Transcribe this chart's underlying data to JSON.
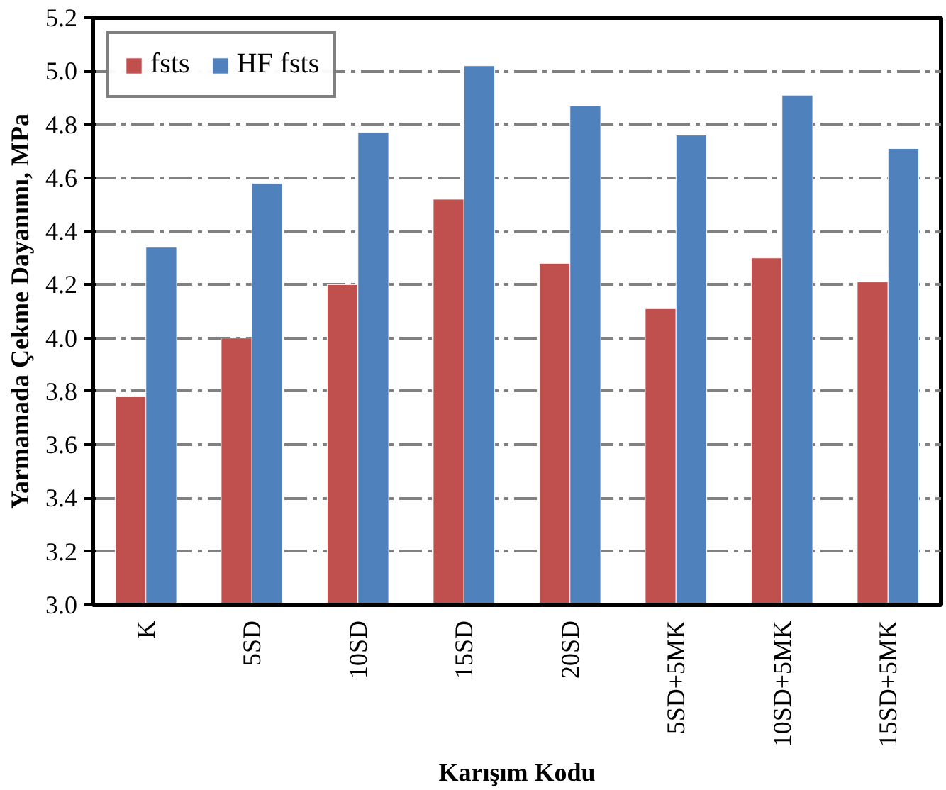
{
  "chart_data": {
    "type": "bar",
    "xlabel": "Karışım Kodu",
    "ylabel": "Yarmamada Çekme Dayanımı, MPa",
    "categories": [
      "K",
      "5SD",
      "10SD",
      "15SD",
      "20SD",
      "5SD+5MK",
      "10SD+5MK",
      "15SD+5MK"
    ],
    "series": [
      {
        "name": "fsts",
        "color": "#c0504d",
        "values": [
          3.78,
          4.0,
          4.2,
          4.52,
          4.28,
          4.11,
          4.3,
          4.21
        ]
      },
      {
        "name": "HF fsts",
        "color": "#4f81bd",
        "values": [
          4.34,
          4.58,
          4.77,
          5.02,
          4.87,
          4.76,
          4.91,
          4.71
        ]
      }
    ],
    "ylim": [
      3.0,
      5.2
    ],
    "yticks": [
      {
        "value": 3.0,
        "label": "3.0"
      },
      {
        "value": 3.2,
        "label": "3.2"
      },
      {
        "value": 3.4,
        "label": "3.4"
      },
      {
        "value": 3.6,
        "label": "3.6"
      },
      {
        "value": 3.8,
        "label": "3.8"
      },
      {
        "value": 4.0,
        "label": "4.0"
      },
      {
        "value": 4.2,
        "label": "4.2"
      },
      {
        "value": 4.4,
        "label": "4.4"
      },
      {
        "value": 4.6,
        "label": "4.6"
      },
      {
        "value": 4.8,
        "label": "4.8"
      },
      {
        "value": 5.0,
        "label": "5.0"
      },
      {
        "value": 5.2,
        "label": "5.2"
      }
    ],
    "grid": "y",
    "legend": "top left"
  }
}
